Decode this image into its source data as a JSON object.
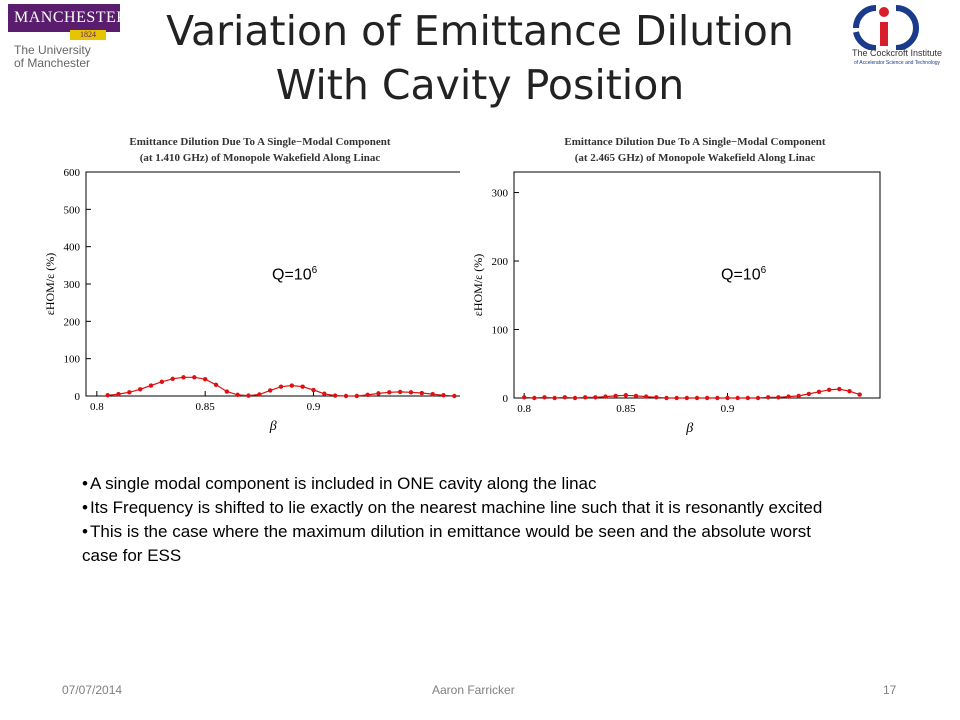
{
  "header": {
    "title_line1": "Variation of Emittance Dilution",
    "title_line2": "With Cavity Position",
    "left_logo": {
      "name": "MANCHESTER",
      "year": "1824",
      "line1": "The University",
      "line2": "of Manchester"
    },
    "right_logo": {
      "line1": "The Cockcroft Institute",
      "line2": "of Accelerator Science and Technology"
    }
  },
  "charts": [
    {
      "title_line1": "Emittance Dilution Due To A Single−Modal Component",
      "title_line2": "(at 1.410 GHz) of Monopole Wakefield Along Linac",
      "q_label": "Q=10",
      "q_exp": "6"
    },
    {
      "title_line1": "Emittance Dilution Due To A Single−Modal Component",
      "title_line2": "(at 2.465 GHz) of Monopole Wakefield Along Linac",
      "q_label": "Q=10",
      "q_exp": "6"
    }
  ],
  "chart_data": [
    {
      "type": "scatter",
      "title": "Emittance Dilution Due To A Single−Modal Component (at 1.410 GHz) of Monopole Wakefield Along Linac",
      "xlabel": "β",
      "ylabel": "εHOM/ε (%)",
      "xlim": [
        0.795,
        0.975
      ],
      "ylim": [
        0,
        600
      ],
      "xticks": [
        0.8,
        0.85,
        0.9
      ],
      "yticks": [
        0,
        100,
        200,
        300,
        400,
        500,
        600
      ],
      "color": "#dd1111",
      "x": [
        0.805,
        0.81,
        0.815,
        0.82,
        0.825,
        0.83,
        0.835,
        0.84,
        0.845,
        0.85,
        0.855,
        0.86,
        0.865,
        0.87,
        0.875,
        0.88,
        0.885,
        0.89,
        0.895,
        0.9,
        0.905,
        0.91,
        0.915,
        0.92,
        0.925,
        0.93,
        0.935,
        0.94,
        0.945,
        0.95,
        0.955,
        0.96,
        0.965
      ],
      "y": [
        2,
        5,
        10,
        18,
        28,
        38,
        46,
        50,
        50,
        45,
        30,
        12,
        3,
        1,
        4,
        15,
        25,
        28,
        25,
        16,
        6,
        1,
        0,
        0,
        3,
        7,
        10,
        11,
        10,
        8,
        5,
        2,
        0
      ]
    },
    {
      "type": "scatter",
      "title": "Emittance Dilution Due To A Single−Modal Component (at 2.465 GHz) of Monopole Wakefield Along Linac",
      "xlabel": "β",
      "ylabel": "εHOM/ε (%)",
      "xlim": [
        0.795,
        0.975
      ],
      "ylim": [
        0,
        330
      ],
      "xticks": [
        0.8,
        0.85,
        0.9
      ],
      "yticks": [
        0,
        100,
        200,
        300
      ],
      "color": "#dd1111",
      "x": [
        0.8,
        0.805,
        0.81,
        0.815,
        0.82,
        0.825,
        0.83,
        0.835,
        0.84,
        0.845,
        0.85,
        0.855,
        0.86,
        0.865,
        0.87,
        0.875,
        0.88,
        0.885,
        0.89,
        0.895,
        0.9,
        0.905,
        0.91,
        0.915,
        0.92,
        0.925,
        0.93,
        0.935,
        0.94,
        0.945,
        0.95,
        0.955,
        0.96,
        0.965
      ],
      "y": [
        1,
        0,
        1,
        0,
        1,
        0,
        1,
        1,
        2,
        3,
        4,
        3,
        2,
        1,
        0,
        0,
        0,
        0,
        0,
        0,
        0,
        0,
        0,
        0,
        1,
        1,
        2,
        3,
        6,
        9,
        12,
        13,
        10,
        5
      ]
    }
  ],
  "bullets": [
    "A single modal component is included in ONE cavity along the linac",
    "Its Frequency is shifted to lie exactly on the nearest machine line such that it is resonantly excited",
    "This is the case where the maximum dilution in emittance would be seen and the absolute worst case for ESS"
  ],
  "footer": {
    "date": "07/07/2014",
    "author": "Aaron Farricker",
    "page": "17"
  }
}
